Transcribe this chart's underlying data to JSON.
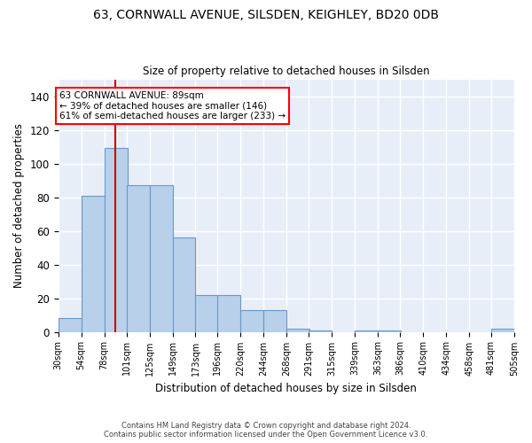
{
  "title": "63, CORNWALL AVENUE, SILSDEN, KEIGHLEY, BD20 0DB",
  "subtitle": "Size of property relative to detached houses in Silsden",
  "xlabel": "Distribution of detached houses by size in Silsden",
  "ylabel": "Number of detached properties",
  "bar_color": "#b8d0ea",
  "bar_edge_color": "#6699cc",
  "background_color": "#e8eef8",
  "grid_color": "#ffffff",
  "annotation_text": "63 CORNWALL AVENUE: 89sqm\n← 39% of detached houses are smaller (146)\n61% of semi-detached houses are larger (233) →",
  "ref_line_color": "#cc0000",
  "bins": [
    30,
    54,
    78,
    101,
    125,
    149,
    173,
    196,
    220,
    244,
    268,
    291,
    315,
    339,
    363,
    386,
    410,
    434,
    458,
    481,
    505
  ],
  "values": [
    8,
    81,
    109,
    87,
    87,
    56,
    22,
    22,
    13,
    13,
    2,
    1,
    0,
    1,
    1,
    0,
    0,
    0,
    0,
    2
  ],
  "ylim": [
    0,
    150
  ],
  "yticks": [
    0,
    20,
    40,
    60,
    80,
    100,
    120,
    140
  ],
  "footnote": "Contains HM Land Registry data © Crown copyright and database right 2024.\nContains public sector information licensed under the Open Government Licence v3.0.",
  "property_sqm": 89
}
